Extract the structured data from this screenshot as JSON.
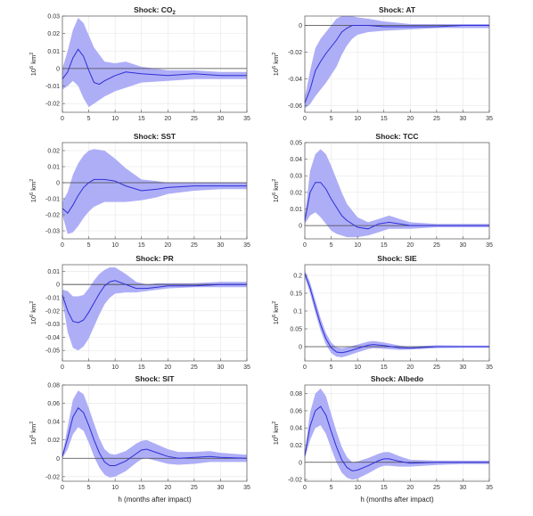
{
  "xlabel": "h (months after impact)",
  "colors": {
    "band": "#aaaaf7",
    "line": "#2e2ed6",
    "zero": "#444444",
    "grid": "#e6e6e6",
    "axis": "#555555"
  },
  "chart_data": [
    {
      "type": "line",
      "title": "Shock: CO",
      "title_sub": "2",
      "ylabel": "10",
      "ylabel_sup": "6",
      "ylabel_unit": " km",
      "ylabel_unit_sup": "2",
      "xlim": [
        0,
        35
      ],
      "ylim": [
        -0.025,
        0.03
      ],
      "xticks": [
        0,
        5,
        10,
        15,
        20,
        25,
        30,
        35
      ],
      "yticks": [
        -0.02,
        -0.01,
        0,
        0.01,
        0.02,
        0.03
      ],
      "ytick_labels": [
        "-0.02",
        "-0.01",
        "0",
        "0.01",
        "0.02",
        "0.03"
      ],
      "series": [
        {
          "x": [
            0,
            1,
            2,
            3,
            4,
            5,
            6,
            7,
            8,
            10,
            12,
            15,
            20,
            25,
            30,
            35
          ],
          "y": [
            -0.006,
            -0.002,
            0.006,
            0.011,
            0.007,
            -0.001,
            -0.008,
            -0.009,
            -0.007,
            -0.004,
            -0.002,
            -0.003,
            -0.004,
            -0.003,
            -0.004,
            -0.004
          ],
          "lower": [
            -0.012,
            -0.01,
            -0.007,
            -0.01,
            -0.017,
            -0.022,
            -0.02,
            -0.018,
            -0.016,
            -0.013,
            -0.011,
            -0.008,
            -0.007,
            -0.006,
            -0.006,
            -0.006
          ],
          "upper": [
            0.0,
            0.01,
            0.022,
            0.029,
            0.026,
            0.019,
            0.012,
            0.008,
            0.004,
            0.003,
            0.004,
            0.001,
            -0.001,
            -0.001,
            -0.002,
            -0.002
          ]
        }
      ]
    },
    {
      "type": "line",
      "title": "Shock: AT",
      "title_sub": "",
      "ylabel": "10",
      "ylabel_sup": "6",
      "ylabel_unit": " km",
      "ylabel_unit_sup": "2",
      "xlim": [
        0,
        35
      ],
      "ylim": [
        -0.065,
        0.007
      ],
      "xticks": [
        0,
        5,
        10,
        15,
        20,
        25,
        30,
        35
      ],
      "yticks": [
        -0.06,
        -0.04,
        -0.02,
        0
      ],
      "ytick_labels": [
        "-0.06",
        "-0.04",
        "-0.02",
        "0"
      ],
      "series": [
        {
          "x": [
            0,
            1,
            2,
            3,
            4,
            5,
            6,
            7,
            8,
            9,
            10,
            12,
            15,
            20,
            25,
            30,
            35
          ],
          "y": [
            -0.058,
            -0.048,
            -0.034,
            -0.027,
            -0.021,
            -0.016,
            -0.011,
            -0.005,
            -0.002,
            0.0,
            0.0,
            0.0,
            -0.001,
            -0.001,
            -0.001,
            0.0,
            0.0
          ],
          "lower": [
            -0.062,
            -0.059,
            -0.053,
            -0.048,
            -0.043,
            -0.037,
            -0.031,
            -0.022,
            -0.015,
            -0.01,
            -0.007,
            -0.005,
            -0.004,
            -0.003,
            -0.002,
            -0.002,
            -0.002
          ],
          "upper": [
            -0.054,
            -0.034,
            -0.017,
            -0.01,
            -0.005,
            0.0,
            0.005,
            0.007,
            0.007,
            0.007,
            0.006,
            0.005,
            0.003,
            0.001,
            0.001,
            0.001,
            0.001
          ]
        }
      ]
    },
    {
      "type": "line",
      "title": "Shock: SST",
      "title_sub": "",
      "ylabel": "10",
      "ylabel_sup": "6",
      "ylabel_unit": " km",
      "ylabel_unit_sup": "2",
      "xlim": [
        0,
        35
      ],
      "ylim": [
        -0.035,
        0.025
      ],
      "xticks": [
        0,
        5,
        10,
        15,
        20,
        25,
        30,
        35
      ],
      "yticks": [
        -0.03,
        -0.02,
        -0.01,
        0,
        0.01,
        0.02
      ],
      "ytick_labels": [
        "-0.03",
        "-0.02",
        "-0.01",
        "0",
        "0.01",
        "0.02"
      ],
      "series": [
        {
          "x": [
            0,
            1,
            2,
            3,
            4,
            5,
            6,
            8,
            10,
            12,
            15,
            18,
            20,
            25,
            30,
            35
          ],
          "y": [
            -0.016,
            -0.019,
            -0.014,
            -0.008,
            -0.003,
            0.0,
            0.002,
            0.002,
            0.001,
            -0.002,
            -0.005,
            -0.004,
            -0.003,
            -0.002,
            -0.002,
            -0.002
          ],
          "lower": [
            -0.02,
            -0.032,
            -0.031,
            -0.027,
            -0.022,
            -0.018,
            -0.015,
            -0.012,
            -0.012,
            -0.012,
            -0.011,
            -0.009,
            -0.007,
            -0.005,
            -0.004,
            -0.004
          ],
          "upper": [
            -0.012,
            -0.006,
            0.005,
            0.012,
            0.017,
            0.02,
            0.021,
            0.02,
            0.015,
            0.009,
            0.002,
            0.001,
            0.0,
            0.0,
            0.0,
            0.0
          ]
        }
      ]
    },
    {
      "type": "line",
      "title": "Shock: TCC",
      "title_sub": "",
      "ylabel": "10",
      "ylabel_sup": "6",
      "ylabel_unit": " km",
      "ylabel_unit_sup": "2",
      "xlim": [
        0,
        35
      ],
      "ylim": [
        -0.008,
        0.05
      ],
      "xticks": [
        0,
        5,
        10,
        15,
        20,
        25,
        30,
        35
      ],
      "yticks": [
        0,
        0.01,
        0.02,
        0.03,
        0.04,
        0.05
      ],
      "ytick_labels": [
        "0",
        "0.01",
        "0.02",
        "0.03",
        "0.04",
        "0.05"
      ],
      "series": [
        {
          "x": [
            0,
            1,
            2,
            3,
            4,
            5,
            6,
            7,
            8,
            10,
            12,
            14,
            16,
            18,
            20,
            25,
            30,
            35
          ],
          "y": [
            0.003,
            0.02,
            0.026,
            0.026,
            0.022,
            0.016,
            0.011,
            0.006,
            0.003,
            -0.001,
            -0.002,
            0.001,
            0.002,
            0.001,
            0.0,
            0.0,
            0.0,
            0.0
          ],
          "lower": [
            0.001,
            0.006,
            0.008,
            0.005,
            0.001,
            -0.003,
            -0.005,
            -0.006,
            -0.007,
            -0.007,
            -0.006,
            -0.004,
            -0.002,
            -0.002,
            -0.002,
            -0.001,
            -0.001,
            -0.001
          ],
          "upper": [
            0.005,
            0.033,
            0.043,
            0.046,
            0.043,
            0.036,
            0.028,
            0.02,
            0.013,
            0.005,
            0.002,
            0.004,
            0.006,
            0.004,
            0.002,
            0.001,
            0.001,
            0.001
          ]
        }
      ]
    },
    {
      "type": "line",
      "title": "Shock: PR",
      "title_sub": "",
      "ylabel": "10",
      "ylabel_sup": "6",
      "ylabel_unit": " km",
      "ylabel_unit_sup": "2",
      "xlim": [
        0,
        35
      ],
      "ylim": [
        -0.058,
        0.015
      ],
      "xticks": [
        0,
        5,
        10,
        15,
        20,
        25,
        30,
        35
      ],
      "yticks": [
        -0.05,
        -0.04,
        -0.03,
        -0.02,
        -0.01,
        0,
        0.01
      ],
      "ytick_labels": [
        "-0.05",
        "-0.04",
        "-0.03",
        "-0.02",
        "-0.01",
        "0",
        "0.01"
      ],
      "series": [
        {
          "x": [
            0,
            1,
            2,
            3,
            4,
            5,
            6,
            7,
            8,
            9,
            10,
            12,
            14,
            16,
            18,
            20,
            25,
            30,
            35
          ],
          "y": [
            -0.008,
            -0.02,
            -0.028,
            -0.029,
            -0.027,
            -0.021,
            -0.014,
            -0.007,
            -0.001,
            0.002,
            0.003,
            0.0,
            -0.003,
            -0.003,
            -0.002,
            -0.001,
            -0.001,
            0.0,
            0.0
          ],
          "lower": [
            -0.012,
            -0.036,
            -0.048,
            -0.05,
            -0.047,
            -0.041,
            -0.032,
            -0.023,
            -0.015,
            -0.01,
            -0.007,
            -0.006,
            -0.006,
            -0.005,
            -0.004,
            -0.003,
            -0.002,
            -0.002,
            -0.002
          ],
          "upper": [
            -0.004,
            -0.005,
            -0.009,
            -0.009,
            -0.008,
            -0.003,
            0.003,
            0.008,
            0.011,
            0.013,
            0.013,
            0.008,
            0.002,
            0.0,
            0.001,
            0.001,
            0.001,
            0.002,
            0.002
          ]
        }
      ]
    },
    {
      "type": "line",
      "title": "Shock: SIE",
      "title_sub": "",
      "ylabel": "10",
      "ylabel_sup": "6",
      "ylabel_unit": " km",
      "ylabel_unit_sup": "2",
      "xlim": [
        0,
        35
      ],
      "ylim": [
        -0.04,
        0.23
      ],
      "xticks": [
        0,
        5,
        10,
        15,
        20,
        25,
        30,
        35
      ],
      "yticks": [
        0,
        0.05,
        0.1,
        0.15,
        0.2
      ],
      "ytick_labels": [
        "0",
        "0.05",
        "0.1",
        "0.15",
        "0.2"
      ],
      "series": [
        {
          "x": [
            0,
            1,
            2,
            3,
            4,
            5,
            6,
            7,
            8,
            10,
            12,
            13,
            15,
            18,
            20,
            25,
            30,
            35
          ],
          "y": [
            0.205,
            0.165,
            0.112,
            0.062,
            0.022,
            -0.003,
            -0.015,
            -0.017,
            -0.014,
            -0.005,
            0.004,
            0.006,
            0.003,
            -0.003,
            -0.004,
            0.0,
            0.0,
            0.0
          ],
          "lower": [
            0.195,
            0.15,
            0.095,
            0.045,
            0.006,
            -0.018,
            -0.028,
            -0.03,
            -0.026,
            -0.016,
            -0.007,
            -0.004,
            -0.006,
            -0.009,
            -0.008,
            -0.004,
            -0.003,
            -0.003
          ],
          "upper": [
            0.215,
            0.18,
            0.13,
            0.08,
            0.038,
            0.012,
            -0.002,
            -0.004,
            -0.002,
            0.006,
            0.014,
            0.016,
            0.012,
            0.003,
            0.0,
            0.004,
            0.003,
            0.003
          ]
        }
      ]
    },
    {
      "type": "line",
      "title": "Shock: SIT",
      "title_sub": "",
      "ylabel": "10",
      "ylabel_sup": "6",
      "ylabel_unit": " km",
      "ylabel_unit_sup": "2",
      "xlim": [
        0,
        35
      ],
      "ylim": [
        -0.025,
        0.08
      ],
      "xticks": [
        0,
        5,
        10,
        15,
        20,
        25,
        30,
        35
      ],
      "yticks": [
        -0.02,
        0,
        0.02,
        0.04,
        0.06,
        0.08
      ],
      "ytick_labels": [
        "-0.02",
        "0",
        "0.02",
        "0.04",
        "0.06",
        "0.08"
      ],
      "series": [
        {
          "x": [
            0,
            1,
            2,
            3,
            4,
            5,
            6,
            7,
            8,
            9,
            10,
            12,
            14,
            15,
            16,
            18,
            20,
            22,
            25,
            28,
            30,
            35
          ],
          "y": [
            0.002,
            0.022,
            0.045,
            0.055,
            0.05,
            0.036,
            0.02,
            0.006,
            -0.004,
            -0.008,
            -0.008,
            -0.003,
            0.005,
            0.009,
            0.01,
            0.006,
            0.002,
            0.0,
            0.001,
            0.002,
            0.001,
            0.0
          ],
          "lower": [
            0.0,
            0.01,
            0.026,
            0.034,
            0.03,
            0.017,
            0.002,
            -0.01,
            -0.018,
            -0.021,
            -0.02,
            -0.014,
            -0.005,
            -0.001,
            0.0,
            -0.003,
            -0.006,
            -0.007,
            -0.006,
            -0.004,
            -0.004,
            -0.004
          ],
          "upper": [
            0.004,
            0.034,
            0.064,
            0.074,
            0.07,
            0.055,
            0.038,
            0.022,
            0.01,
            0.005,
            0.004,
            0.008,
            0.016,
            0.019,
            0.02,
            0.015,
            0.01,
            0.007,
            0.007,
            0.008,
            0.006,
            0.004
          ]
        }
      ]
    },
    {
      "type": "line",
      "title": "Shock: Albedo",
      "title_sub": "",
      "ylabel": "10",
      "ylabel_sup": "6",
      "ylabel_unit": " km",
      "ylabel_unit_sup": "2",
      "xlim": [
        0,
        35
      ],
      "ylim": [
        -0.022,
        0.09
      ],
      "xticks": [
        0,
        5,
        10,
        15,
        20,
        25,
        30,
        35
      ],
      "yticks": [
        -0.02,
        0,
        0.02,
        0.04,
        0.06,
        0.08
      ],
      "ytick_labels": [
        "-0.02",
        "0",
        "0.02",
        "0.04",
        "0.06",
        "0.08"
      ],
      "series": [
        {
          "x": [
            0,
            1,
            2,
            3,
            4,
            5,
            6,
            7,
            8,
            9,
            10,
            12,
            14,
            15,
            16,
            18,
            20,
            25,
            30,
            35
          ],
          "y": [
            0.008,
            0.042,
            0.06,
            0.065,
            0.055,
            0.036,
            0.018,
            0.003,
            -0.006,
            -0.01,
            -0.009,
            -0.004,
            0.002,
            0.004,
            0.004,
            0.001,
            -0.001,
            0.0,
            0.0,
            0.0
          ],
          "lower": [
            0.004,
            0.026,
            0.04,
            0.043,
            0.033,
            0.016,
            0.0,
            -0.012,
            -0.018,
            -0.02,
            -0.019,
            -0.013,
            -0.006,
            -0.004,
            -0.004,
            -0.005,
            -0.005,
            -0.003,
            -0.002,
            -0.002
          ],
          "upper": [
            0.012,
            0.058,
            0.08,
            0.086,
            0.077,
            0.056,
            0.036,
            0.018,
            0.006,
            0.0,
            0.001,
            0.005,
            0.01,
            0.012,
            0.012,
            0.007,
            0.003,
            0.002,
            0.002,
            0.002
          ]
        }
      ]
    }
  ]
}
